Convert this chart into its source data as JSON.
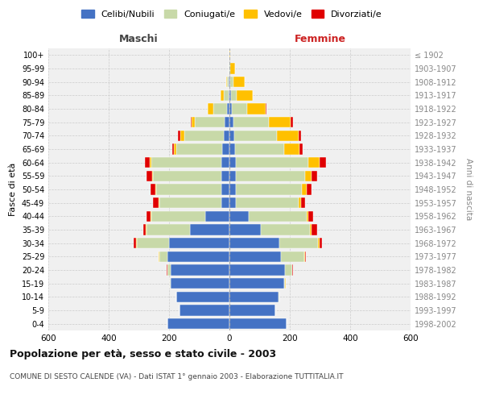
{
  "age_groups": [
    "0-4",
    "5-9",
    "10-14",
    "15-19",
    "20-24",
    "25-29",
    "30-34",
    "35-39",
    "40-44",
    "45-49",
    "50-54",
    "55-59",
    "60-64",
    "65-69",
    "70-74",
    "75-79",
    "80-84",
    "85-89",
    "90-94",
    "95-99",
    "100+"
  ],
  "birth_years": [
    "1998-2002",
    "1993-1997",
    "1988-1992",
    "1983-1987",
    "1978-1982",
    "1973-1977",
    "1968-1972",
    "1963-1967",
    "1958-1962",
    "1953-1957",
    "1948-1952",
    "1943-1947",
    "1938-1942",
    "1933-1937",
    "1928-1932",
    "1923-1927",
    "1918-1922",
    "1913-1917",
    "1908-1912",
    "1903-1907",
    "≤ 1902"
  ],
  "maschi": {
    "celibi": [
      205,
      165,
      175,
      195,
      195,
      205,
      200,
      130,
      80,
      28,
      28,
      28,
      28,
      25,
      20,
      15,
      8,
      4,
      2,
      1,
      0
    ],
    "coniugati": [
      0,
      0,
      1,
      2,
      10,
      28,
      108,
      145,
      180,
      205,
      215,
      225,
      230,
      150,
      130,
      100,
      45,
      15,
      5,
      1,
      0
    ],
    "vedovi": [
      0,
      0,
      0,
      0,
      1,
      1,
      2,
      2,
      2,
      3,
      3,
      3,
      5,
      10,
      12,
      10,
      18,
      10,
      3,
      1,
      0
    ],
    "divorziati": [
      0,
      0,
      0,
      1,
      2,
      2,
      8,
      8,
      12,
      18,
      16,
      18,
      18,
      5,
      8,
      3,
      2,
      1,
      1,
      0,
      0
    ]
  },
  "femmine": {
    "celibi": [
      188,
      152,
      162,
      180,
      185,
      170,
      165,
      105,
      65,
      22,
      22,
      22,
      22,
      18,
      15,
      12,
      8,
      4,
      2,
      1,
      0
    ],
    "coniugati": [
      0,
      0,
      2,
      5,
      22,
      78,
      128,
      162,
      192,
      208,
      218,
      228,
      238,
      162,
      142,
      118,
      50,
      20,
      10,
      2,
      0
    ],
    "vedovi": [
      0,
      0,
      0,
      1,
      2,
      3,
      5,
      5,
      5,
      8,
      16,
      22,
      38,
      52,
      72,
      72,
      62,
      52,
      38,
      15,
      2
    ],
    "divorziati": [
      0,
      0,
      0,
      1,
      2,
      3,
      8,
      18,
      15,
      12,
      15,
      18,
      22,
      10,
      8,
      8,
      3,
      2,
      1,
      1,
      0
    ]
  },
  "colors": {
    "celibi": "#4472c4",
    "coniugati": "#c8d9a8",
    "vedovi": "#ffc000",
    "divorziati": "#e00000"
  },
  "xlim": 600,
  "title": "Popolazione per età, sesso e stato civile - 2003",
  "subtitle": "COMUNE DI SESTO CALENDE (VA) - Dati ISTAT 1° gennaio 2003 - Elaborazione TUTTITALIA.IT",
  "ylabel": "Fasce di età",
  "ylabel_right": "Anni di nascita",
  "legend_labels": [
    "Celibi/Nubili",
    "Coniugati/e",
    "Vedovi/e",
    "Divorziati/e"
  ],
  "maschi_label": "Maschi",
  "femmine_label": "Femmine"
}
